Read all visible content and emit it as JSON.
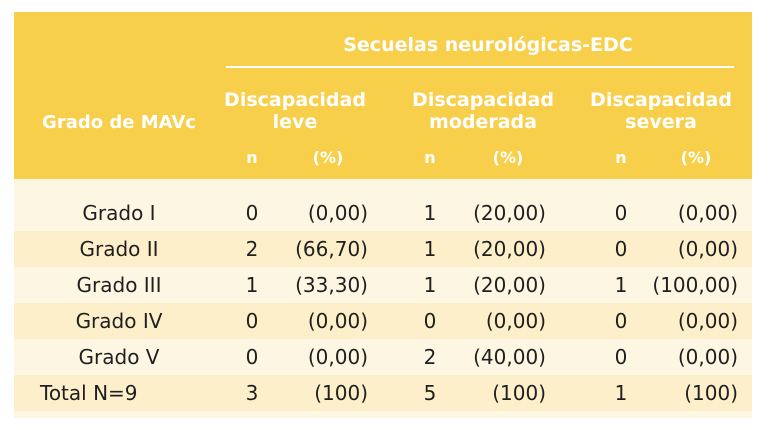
{
  "table": {
    "group_header": "Secuelas neurológicas-EDC",
    "row_header": "Grado de MAVc",
    "columns": [
      {
        "line1": "Discapacidad",
        "line2": "leve",
        "n": "n",
        "pct": "(%)"
      },
      {
        "line1": "Discapacidad",
        "line2": "moderada",
        "n": "n",
        "pct": "(%)"
      },
      {
        "line1": "Discapacidad",
        "line2": "severa",
        "n": "n",
        "pct": "(%)"
      }
    ],
    "rows": [
      {
        "label": "Grado I",
        "n1": "0",
        "p1": "(0,00)",
        "n2": "1",
        "p2": "(20,00)",
        "n3": "0",
        "p3": "(0,00)"
      },
      {
        "label": "Grado II",
        "n1": "2",
        "p1": "(66,70)",
        "n2": "1",
        "p2": "(20,00)",
        "n3": "0",
        "p3": "(0,00)"
      },
      {
        "label": "Grado III",
        "n1": "1",
        "p1": "(33,30)",
        "n2": "1",
        "p2": "(20,00)",
        "n3": "1",
        "p3": "(100,00)"
      },
      {
        "label": "Grado IV",
        "n1": "0",
        "p1": "(0,00)",
        "n2": "0",
        "p2": "(0,00)",
        "n3": "0",
        "p3": "(0,00)"
      },
      {
        "label": "Grado V",
        "n1": "0",
        "p1": "(0,00)",
        "n2": "2",
        "p2": "(40,00)",
        "n3": "0",
        "p3": "(0,00)"
      }
    ],
    "total": {
      "label": "Total N=9",
      "n1": "3",
      "p1": "(100)",
      "n2": "5",
      "p2": "(100)",
      "n3": "1",
      "p3": "(100)"
    }
  },
  "colors": {
    "header": "#f8cf4a",
    "row_light": "#fdf6e2",
    "row_alt": "#fdefc9",
    "text": "#1f1f1f"
  }
}
